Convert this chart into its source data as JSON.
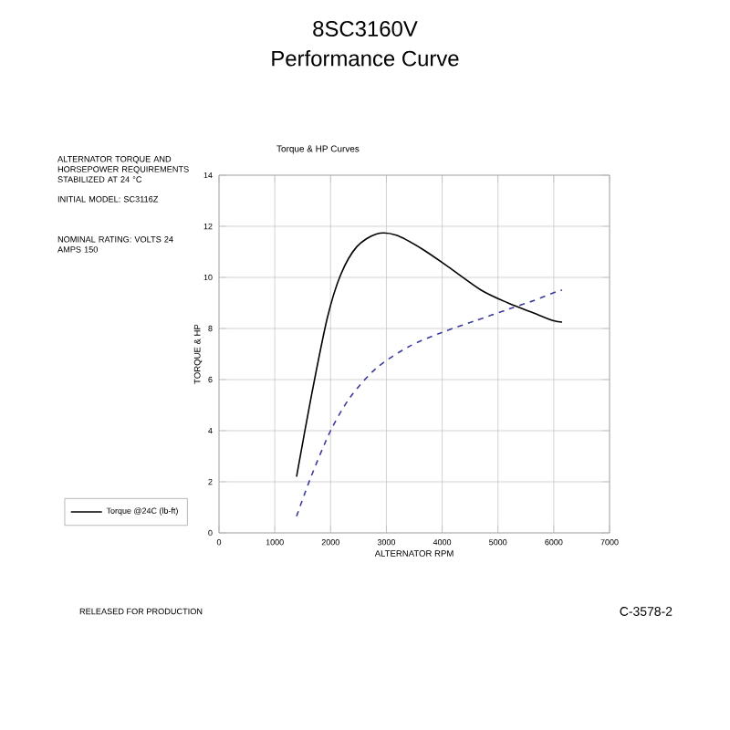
{
  "chart_data": {
    "type": "line",
    "title": "8SC3160V",
    "subtitle": "Performance Curve",
    "xlabel": "ALTERNATOR RPM",
    "ylabel": "TORQUE & HP",
    "annotations": [
      "Torque & HP Curves",
      "ALTERNATOR TORQUE AND HORSEPOWER REQUIREMENTS STABILIZED AT 24 °C",
      "INITIAL MODEL: SC3116Z",
      "NOMINAL RATING: VOLTS 24 AMPS 150",
      "RELEASED FOR PRODUCTION",
      "C-3578-2"
    ],
    "series": [
      {
        "name": "Torque @24C (lb-ft)",
        "color": "#000000",
        "line_style": "solid",
        "x": [
          1390,
          1650,
          1940,
          2180,
          2470,
          2820,
          3180,
          3650,
          4120,
          4700,
          5180,
          5650,
          6000,
          6150
        ],
        "values": [
          2.2,
          5.3,
          8.4,
          10.1,
          11.2,
          11.7,
          11.65,
          11.1,
          10.4,
          9.5,
          9.0,
          8.6,
          8.3,
          8.25
        ]
      },
      {
        "color": "#3a3aa0",
        "line_style": "dashed",
        "x": [
          1390,
          1650,
          2000,
          2350,
          2820,
          3410,
          4000,
          4590,
          5180,
          5650,
          6060,
          6150
        ],
        "values": [
          0.65,
          2.2,
          4.0,
          5.3,
          6.45,
          7.3,
          7.85,
          8.3,
          8.75,
          9.1,
          9.45,
          9.5
        ]
      }
    ],
    "xlim": [
      0,
      7000
    ],
    "ylim": [
      0,
      14
    ],
    "xticks": [
      0,
      1000,
      2000,
      3000,
      4000,
      5000,
      6000,
      7000
    ],
    "yticks": [
      0,
      2,
      4,
      6,
      8,
      10,
      12,
      14
    ],
    "grid": true,
    "legend": "left",
    "marker": "none"
  }
}
